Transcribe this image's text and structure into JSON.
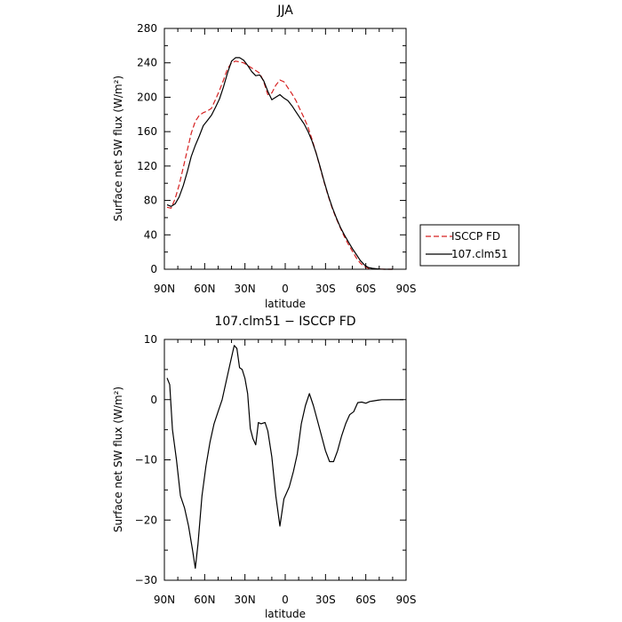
{
  "chart_data": [
    {
      "type": "line",
      "title": "JJA",
      "xlabel": "latitude",
      "ylabel": "Surface net SW flux (W/m²)",
      "xlim": [
        90,
        -90
      ],
      "ylim": [
        0,
        280
      ],
      "xticks": [
        90,
        60,
        30,
        0,
        -30,
        -60,
        -90
      ],
      "xtick_labels": [
        "90N",
        "60N",
        "30N",
        "0",
        "30S",
        "60S",
        "90S"
      ],
      "yticks": [
        0,
        40,
        80,
        120,
        160,
        200,
        240,
        280
      ],
      "ytick_labels": [
        "0",
        "40",
        "80",
        "120",
        "160",
        "200",
        "240",
        "280"
      ],
      "grid": false,
      "legend_placement": "right",
      "series": [
        {
          "name": "ISCCP FD",
          "color": "#d62020",
          "style": "dashed",
          "x": [
            88,
            85,
            82,
            79,
            76,
            73,
            70,
            67,
            64,
            61,
            58,
            55,
            52,
            49,
            46,
            43,
            40,
            37,
            34,
            31,
            28,
            25,
            22,
            19,
            16,
            13,
            10,
            7,
            4,
            1,
            -2,
            -5,
            -8,
            -11,
            -14,
            -17,
            -20,
            -23,
            -26,
            -29,
            -32,
            -35,
            -38,
            -41,
            -44,
            -47,
            -50,
            -53,
            -56,
            -59,
            -62,
            -65,
            -68,
            -71,
            -74,
            -77,
            -80
          ],
          "values": [
            72,
            71,
            82,
            98,
            118,
            138,
            158,
            172,
            179,
            182,
            184,
            187,
            197,
            208,
            220,
            233,
            240,
            242,
            241,
            240,
            237,
            234,
            231,
            228,
            218,
            203,
            205,
            214,
            220,
            218,
            211,
            204,
            196,
            186,
            176,
            165,
            151,
            135,
            118,
            101,
            85,
            71,
            59,
            48,
            38,
            29,
            21,
            13,
            7,
            3,
            1,
            0.5,
            0.2,
            0.1,
            0,
            0,
            0
          ]
        },
        {
          "name": "107.clm51",
          "color": "#000000",
          "style": "solid",
          "x": [
            88,
            85,
            82,
            79,
            76,
            73,
            70,
            67,
            64,
            61,
            58,
            55,
            52,
            49,
            46,
            43,
            40,
            37,
            34,
            31,
            28,
            25,
            22,
            19,
            16,
            13,
            10,
            7,
            4,
            1,
            -2,
            -5,
            -8,
            -11,
            -14,
            -17,
            -20,
            -23,
            -26,
            -29,
            -32,
            -35,
            -38,
            -41,
            -44,
            -47,
            -50,
            -53,
            -56,
            -59,
            -62,
            -65,
            -68,
            -71,
            -74,
            -77,
            -80
          ],
          "values": [
            75,
            73,
            76,
            84,
            97,
            113,
            131,
            144,
            155,
            167,
            173,
            179,
            188,
            198,
            212,
            228,
            242,
            246,
            246,
            243,
            237,
            230,
            225,
            226,
            219,
            207,
            197,
            200,
            203,
            199,
            196,
            190,
            183,
            176,
            169,
            160,
            149,
            135,
            119,
            102,
            86,
            72,
            60,
            49,
            40,
            32,
            24,
            17,
            10,
            5,
            2,
            1,
            0.5,
            0.2,
            0,
            0,
            0
          ]
        }
      ]
    },
    {
      "type": "line",
      "title": "107.clm51 − ISCCP FD",
      "xlabel": "latitude",
      "ylabel": "Surface net SW flux (W/m²)",
      "xlim": [
        90,
        -90
      ],
      "ylim": [
        -30,
        10
      ],
      "xticks": [
        90,
        60,
        30,
        0,
        -30,
        -60,
        -90
      ],
      "xtick_labels": [
        "90N",
        "60N",
        "30N",
        "0",
        "30S",
        "60S",
        "90S"
      ],
      "yticks": [
        -30,
        -20,
        -10,
        0,
        10
      ],
      "ytick_labels": [
        "−30",
        "−20",
        "−10",
        "0",
        "10"
      ],
      "grid": false,
      "series": [
        {
          "color": "#000000",
          "style": "solid",
          "x": [
            88,
            86,
            84,
            81,
            78,
            75,
            72,
            69,
            67,
            65,
            62,
            59,
            56,
            53,
            50,
            47,
            44,
            41,
            38,
            36,
            34,
            32,
            30,
            28,
            26,
            24,
            22,
            20,
            18,
            15,
            13,
            10,
            7,
            4,
            1,
            -1,
            -3,
            -6,
            -9,
            -12,
            -15,
            -18,
            -21,
            -24,
            -27,
            -30,
            -33,
            -36,
            -39,
            -42,
            -45,
            -48,
            -51,
            -54,
            -57,
            -60,
            -63,
            -66,
            -69,
            -72,
            -76,
            -80,
            -85,
            -88
          ],
          "values": [
            3.6,
            2.5,
            -5,
            -10,
            -16,
            -18,
            -21,
            -25,
            -28,
            -24,
            -16,
            -11,
            -7,
            -4,
            -2,
            0,
            3,
            6,
            9,
            8.5,
            5.3,
            5.0,
            3.5,
            1.0,
            -4.8,
            -6.5,
            -7.5,
            -3.8,
            -4.0,
            -3.8,
            -5.2,
            -9.5,
            -16,
            -21,
            -16.5,
            -15.5,
            -14.5,
            -12,
            -9,
            -4,
            -1,
            1,
            -1,
            -3.5,
            -6,
            -8.5,
            -10.3,
            -10.3,
            -8.5,
            -6,
            -4,
            -2.5,
            -2,
            -0.5,
            -0.4,
            -0.6,
            -0.3,
            -0.2,
            -0.1,
            0,
            0,
            0,
            0,
            0
          ]
        }
      ]
    }
  ]
}
